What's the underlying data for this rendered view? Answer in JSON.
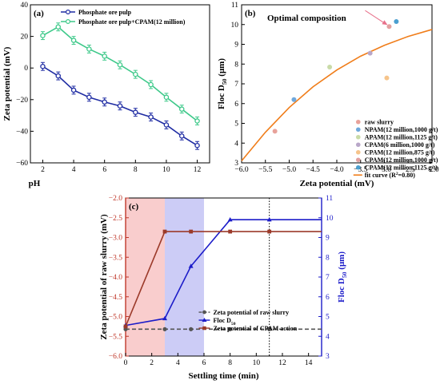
{
  "chart_data": [
    {
      "type": "line",
      "panel_label": "(a)",
      "xlabel": "pH",
      "ylabel": "Zeta potential (mV)",
      "xlim": [
        1.2,
        12.8
      ],
      "ylim": [
        -60,
        40
      ],
      "xticks": [
        2,
        4,
        6,
        8,
        10,
        12
      ],
      "yticks": [
        -60,
        -40,
        -20,
        0,
        20,
        40
      ],
      "legend_position": "top-left",
      "grid": false,
      "x": [
        2,
        3,
        4,
        5,
        6,
        7,
        8,
        9,
        10,
        11,
        12
      ],
      "series": [
        {
          "name": "Phosphate ore pulp",
          "color": "#1f2ca3",
          "values": [
            1,
            -5,
            -14,
            -18.5,
            -21.5,
            -24,
            -28,
            -31,
            -36,
            -43,
            -49
          ],
          "error": [
            2.5,
            2.5,
            2.5,
            2.5,
            2.5,
            2.5,
            2.5,
            2.5,
            2.5,
            2.5,
            2.5
          ]
        },
        {
          "name": "Phosphate ore pulp+CPAM(12 million)",
          "color": "#3ec98a",
          "values": [
            20.5,
            26,
            17.5,
            12,
            7.5,
            2,
            -4,
            -10.5,
            -18.5,
            -26,
            -33.5
          ],
          "error": [
            2.5,
            2.5,
            2.5,
            2.5,
            2.5,
            2.5,
            2.5,
            2.5,
            2.5,
            2.5,
            2.5
          ]
        }
      ]
    },
    {
      "type": "scatter",
      "panel_label": "(b)",
      "annotation": "Optimal composition",
      "xlabel": "Zeta potential (mV)",
      "ylabel": {
        "main": "Floc D",
        "sub": "50",
        "tail": " (μm)"
      },
      "xlim": [
        -6.0,
        -2.0
      ],
      "ylim": [
        3,
        11
      ],
      "xticks": [
        -6.0,
        -5.5,
        -5.0,
        -4.5,
        -4.0,
        -3.5,
        -3.0,
        -2.5,
        -2.0
      ],
      "yticks": [
        3,
        4,
        5,
        6,
        7,
        8,
        9,
        10,
        11
      ],
      "legend_position": "bottom-right",
      "grid": false,
      "points": [
        {
          "name": "raw slurry",
          "x": -5.3,
          "y": 4.6,
          "color": "#e8a29a"
        },
        {
          "name": "NPAM(12 million,1000 g/t)",
          "x": -4.9,
          "y": 6.2,
          "color": "#6fa8dc"
        },
        {
          "name": "APAM(12 million,1125 g/t)",
          "x": -4.15,
          "y": 7.85,
          "color": "#c9dba8"
        },
        {
          "name": "CPAM(6 million,1000 g/t)",
          "x": -3.3,
          "y": 8.55,
          "color": "#b9a7c9"
        },
        {
          "name": "CPAM(12 million,875 g/t)",
          "x": -2.95,
          "y": 7.3,
          "color": "#f6c48b"
        },
        {
          "name": "CPAM(12 million,1000 g/t)",
          "x": -2.9,
          "y": 9.9,
          "color": "#e2a0a0"
        },
        {
          "name": "CPAM(12 million,1125 g/t)",
          "x": -2.75,
          "y": 10.15,
          "color": "#4a9fd0"
        }
      ],
      "fit": {
        "name": "fit curve (R",
        "name_sup": "2",
        "name_tail": "=0.80)",
        "color": "#f07d1a",
        "x": [
          -6.0,
          -5.5,
          -5.0,
          -4.5,
          -4.0,
          -3.5,
          -3.0,
          -2.5,
          -2.0
        ],
        "y": [
          3.1,
          4.55,
          5.8,
          6.85,
          7.7,
          8.4,
          8.95,
          9.4,
          9.75
        ]
      }
    },
    {
      "type": "line",
      "panel_label": "(c)",
      "xlabel": "Settling time (min)",
      "ylabel_left": "Zeta potential of raw slurry (mV)",
      "ylabel_right": {
        "main": "Floc D",
        "sub": "50",
        "tail": " (μm)"
      },
      "xlim": [
        0,
        15
      ],
      "ylim_left": [
        -6.0,
        -2.0
      ],
      "ylim_right": [
        3,
        11
      ],
      "xticks": [
        0,
        2,
        4,
        6,
        8,
        10,
        12,
        14
      ],
      "yticks_left": [
        -6.0,
        -5.5,
        -5.0,
        -4.5,
        -4.0,
        -3.5,
        -3.0,
        -2.5,
        -2.0
      ],
      "yticks_right": [
        3,
        4,
        5,
        6,
        7,
        8,
        9,
        10,
        11
      ],
      "legend_position": "bottom-right",
      "grid": false,
      "shaded_regions": [
        {
          "x": [
            0,
            3
          ],
          "color": "#f8c8c8"
        },
        {
          "x": [
            3,
            6
          ],
          "color": "#c7c7f5"
        }
      ],
      "vline_x": 11,
      "series": [
        {
          "name": "Zeta potential of raw slurry",
          "axis": "left",
          "color": "#555555",
          "dashed": true,
          "marker": "circle",
          "x": [
            0,
            3,
            5,
            8,
            11,
            15
          ],
          "values": [
            -5.32,
            -5.32,
            -5.32,
            -5.32,
            -5.32,
            -5.32
          ]
        },
        {
          "name": {
            "main": "Floc D",
            "sub": "50"
          },
          "axis": "right",
          "color": "#1c1cc9",
          "marker": "triangle",
          "x": [
            0,
            3,
            5,
            8,
            11,
            15
          ],
          "values": [
            4.55,
            4.9,
            7.55,
            9.9,
            9.9,
            9.9
          ]
        },
        {
          "name": "Zeta potential of CPAM action",
          "axis": "left",
          "color": "#9b3a2a",
          "marker": "square",
          "x": [
            0,
            3,
            5,
            8,
            11,
            15
          ],
          "values": [
            -5.25,
            -2.85,
            -2.85,
            -2.85,
            -2.85,
            -2.85
          ]
        }
      ]
    }
  ]
}
